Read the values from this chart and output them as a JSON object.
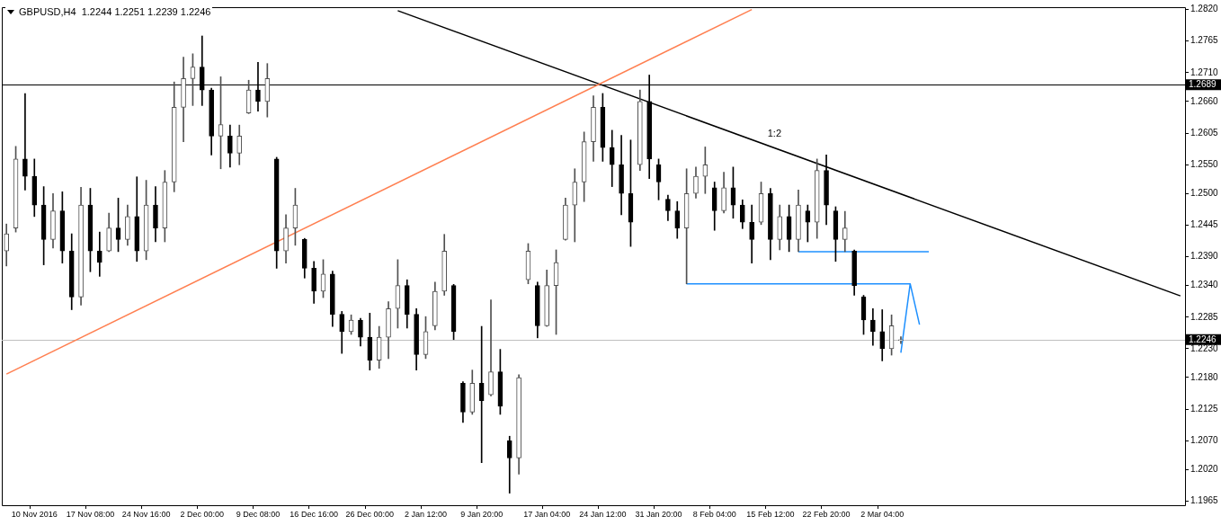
{
  "chart_data": {
    "type": "candlestick",
    "title": "GBPUSD,H4  1.2244 1.2251 1.2239 1.2246",
    "legend": false,
    "marker": "none",
    "categories": [
      null,
      null,
      null,
      "10 Nov 2016",
      null,
      null,
      null,
      null,
      null,
      "17 Nov 08:00",
      null,
      null,
      null,
      null,
      null,
      "24 Nov 16:00",
      null,
      null,
      null,
      null,
      null,
      "2 Dec 00:00",
      null,
      null,
      null,
      null,
      null,
      "9 Dec 08:00",
      null,
      null,
      null,
      null,
      null,
      "16 Dec 16:00",
      null,
      null,
      null,
      null,
      null,
      "26 Dec 00:00",
      null,
      null,
      null,
      null,
      null,
      "2 Jan 12:00",
      null,
      null,
      null,
      null,
      null,
      "9 Jan 20:00",
      null,
      null,
      null,
      null,
      null,
      null,
      "17 Jan 04:00",
      null,
      null,
      null,
      null,
      null,
      "24 Jan 12:00",
      null,
      null,
      null,
      null,
      null,
      "31 Jan 20:00",
      null,
      null,
      null,
      null,
      null,
      "8 Feb 04:00",
      null,
      null,
      null,
      null,
      null,
      "15 Feb 12:00",
      null,
      null,
      null,
      null,
      null,
      "22 Feb 20:00",
      null,
      null,
      null,
      null,
      null,
      "2 Mar 04:00",
      null,
      null,
      null,
      null,
      null,
      null,
      null,
      null,
      null,
      null,
      null,
      null,
      null,
      null,
      null,
      null,
      null,
      null,
      null,
      null,
      null,
      null,
      null,
      null,
      null,
      null,
      null,
      null,
      null,
      null,
      null,
      null
    ],
    "ohlc": [
      [
        1.24,
        1.2447,
        1.2374,
        1.243
      ],
      [
        1.244,
        1.2582,
        1.2433,
        1.256
      ],
      [
        1.256,
        1.2674,
        1.2506,
        1.253
      ],
      [
        1.253,
        1.256,
        1.246,
        1.248
      ],
      [
        1.248,
        1.2512,
        1.2376,
        1.242
      ],
      [
        1.242,
        1.25,
        1.2405,
        1.247
      ],
      [
        1.247,
        1.2503,
        1.2379,
        1.24
      ],
      [
        1.24,
        1.243,
        1.2298,
        1.232
      ],
      [
        1.232,
        1.2511,
        1.2306,
        1.248
      ],
      [
        1.248,
        1.2509,
        1.2364,
        1.24
      ],
      [
        1.24,
        1.2433,
        1.2356,
        1.238
      ],
      [
        1.24,
        1.2466,
        1.2399,
        1.244
      ],
      [
        1.244,
        1.2492,
        1.2399,
        1.242
      ],
      [
        1.242,
        1.248,
        1.241,
        1.246
      ],
      [
        1.246,
        1.2529,
        1.2382,
        1.24
      ],
      [
        1.24,
        1.2523,
        1.2385,
        1.248
      ],
      [
        1.248,
        1.2512,
        1.2416,
        1.244
      ],
      [
        1.244,
        1.254,
        1.2416,
        1.252
      ],
      [
        1.252,
        1.2694,
        1.2503,
        1.265
      ],
      [
        1.265,
        1.2737,
        1.259,
        1.27
      ],
      [
        1.27,
        1.2743,
        1.2653,
        1.272
      ],
      [
        1.272,
        1.2774,
        1.2653,
        1.268
      ],
      [
        1.268,
        1.2683,
        1.2567,
        1.26
      ],
      [
        1.26,
        1.2703,
        1.2543,
        1.262
      ],
      [
        1.26,
        1.2619,
        1.2546,
        1.257
      ],
      [
        1.257,
        1.2619,
        1.255,
        1.26
      ],
      [
        1.264,
        1.2697,
        1.2639,
        1.268
      ],
      [
        1.268,
        1.2728,
        1.2643,
        1.266
      ],
      [
        1.266,
        1.2726,
        1.2633,
        1.27
      ],
      [
        1.256,
        1.2563,
        1.237,
        1.24
      ],
      [
        1.24,
        1.2463,
        1.2379,
        1.244
      ],
      [
        1.244,
        1.2509,
        1.241,
        1.248
      ],
      [
        1.242,
        1.2422,
        1.2353,
        1.237
      ],
      [
        1.237,
        1.2382,
        1.2309,
        1.233
      ],
      [
        1.233,
        1.2385,
        1.2319,
        1.236
      ],
      [
        1.236,
        1.2365,
        1.2269,
        1.229
      ],
      [
        1.229,
        1.2295,
        1.2222,
        1.226
      ],
      [
        1.226,
        1.2289,
        1.2255,
        1.228
      ],
      [
        1.228,
        1.2283,
        1.2235,
        1.225
      ],
      [
        1.225,
        1.2292,
        1.2193,
        1.221
      ],
      [
        1.221,
        1.2269,
        1.2196,
        1.225
      ],
      [
        1.225,
        1.2312,
        1.2213,
        1.23
      ],
      [
        1.23,
        1.2385,
        1.2266,
        1.234
      ],
      [
        1.234,
        1.235,
        1.2266,
        1.229
      ],
      [
        1.229,
        1.23,
        1.2193,
        1.222
      ],
      [
        1.222,
        1.2286,
        1.2213,
        1.226
      ],
      [
        1.227,
        1.2346,
        1.2263,
        1.233
      ],
      [
        1.233,
        1.2429,
        1.2323,
        1.24
      ],
      [
        1.234,
        1.2342,
        1.2246,
        1.226
      ],
      [
        1.217,
        1.2173,
        1.2102,
        1.212
      ],
      [
        1.212,
        1.2193,
        1.2116,
        1.217
      ],
      [
        1.217,
        1.2269,
        1.2032,
        1.214
      ],
      [
        1.215,
        1.2315,
        1.2148,
        1.219
      ],
      [
        1.219,
        1.2229,
        1.2116,
        1.213
      ],
      [
        1.207,
        1.2078,
        1.1979,
        1.204
      ],
      [
        1.204,
        1.2185,
        1.2012,
        1.218
      ],
      [
        1.235,
        1.2413,
        1.2343,
        1.24
      ],
      [
        1.234,
        1.2346,
        1.2249,
        1.227
      ],
      [
        1.227,
        1.2367,
        1.2269,
        1.234
      ],
      [
        1.234,
        1.2402,
        1.2255,
        1.238
      ],
      [
        1.242,
        1.2492,
        1.2419,
        1.248
      ],
      [
        1.248,
        1.2543,
        1.2416,
        1.252
      ],
      [
        1.252,
        1.2607,
        1.2486,
        1.259
      ],
      [
        1.259,
        1.267,
        1.2556,
        1.265
      ],
      [
        1.265,
        1.2674,
        1.2556,
        1.258
      ],
      [
        1.258,
        1.261,
        1.2512,
        1.255
      ],
      [
        1.255,
        1.2601,
        1.2463,
        1.25
      ],
      [
        1.25,
        1.2593,
        1.2408,
        1.245
      ],
      [
        1.255,
        1.268,
        1.254,
        1.266
      ],
      [
        1.266,
        1.2706,
        1.2526,
        1.256
      ],
      [
        1.255,
        1.256,
        1.2489,
        1.252
      ],
      [
        1.249,
        1.2497,
        1.2453,
        1.247
      ],
      [
        1.247,
        1.2486,
        1.2422,
        1.244
      ],
      [
        1.244,
        1.2543,
        1.2343,
        1.25
      ],
      [
        1.25,
        1.2546,
        1.2492,
        1.253
      ],
      [
        1.253,
        1.2581,
        1.25,
        1.255
      ],
      [
        1.251,
        1.252,
        1.2436,
        1.247
      ],
      [
        1.247,
        1.2537,
        1.2466,
        1.251
      ],
      [
        1.251,
        1.2546,
        1.2457,
        1.248
      ],
      [
        1.248,
        1.2489,
        1.2439,
        1.245
      ],
      [
        1.245,
        1.248,
        1.2379,
        1.242
      ],
      [
        1.245,
        1.252,
        1.2446,
        1.25
      ],
      [
        1.25,
        1.2509,
        1.2385,
        1.242
      ],
      [
        1.242,
        1.248,
        1.2402,
        1.246
      ],
      [
        1.246,
        1.248,
        1.2399,
        1.242
      ],
      [
        1.242,
        1.2506,
        1.2399,
        1.248
      ],
      [
        1.247,
        1.248,
        1.2416,
        1.245
      ],
      [
        1.245,
        1.256,
        1.2422,
        1.254
      ],
      [
        1.254,
        1.2567,
        1.2446,
        1.248
      ],
      [
        1.247,
        1.2477,
        1.2382,
        1.242
      ],
      [
        1.242,
        1.2469,
        1.2399,
        1.244
      ],
      [
        1.24,
        1.2402,
        1.2323,
        1.234
      ],
      [
        1.232,
        1.2323,
        1.2255,
        1.228
      ],
      [
        1.228,
        1.23,
        1.2236,
        1.226
      ],
      [
        1.226,
        1.2298,
        1.2209,
        1.223
      ],
      [
        1.223,
        1.2289,
        1.2219,
        1.227
      ],
      [
        1.2244,
        1.2251,
        1.2239,
        1.2246
      ],
      null,
      null,
      null,
      null,
      null,
      null,
      null,
      null,
      null,
      null,
      null,
      null,
      null,
      null,
      null,
      null,
      null,
      null,
      null,
      null,
      null,
      null,
      null,
      null,
      null,
      null,
      null,
      null,
      null,
      null
    ],
    "series": [
      {
        "type": "line",
        "color": "#ff7f50",
        "values": [
          1.2186,
          null,
          null,
          null,
          null,
          null,
          null,
          null,
          null,
          null,
          null,
          null,
          null,
          null,
          null,
          null,
          null,
          null,
          null,
          null,
          null,
          null,
          null,
          null,
          null,
          null,
          null,
          null,
          null,
          null,
          null,
          null,
          null,
          null,
          null,
          null,
          null,
          null,
          null,
          null,
          null,
          null,
          null,
          null,
          null,
          null,
          null,
          null,
          null,
          null,
          null,
          null,
          null,
          null,
          null,
          null,
          null,
          null,
          null,
          null,
          null,
          null,
          null,
          null,
          null,
          null,
          null,
          null,
          null,
          null,
          null,
          null,
          null,
          null,
          null,
          null,
          null,
          null,
          null,
          null,
          1.282,
          null,
          null,
          null,
          null,
          null,
          null,
          null,
          null,
          null,
          null,
          null,
          null,
          null,
          null,
          null,
          null,
          null,
          null,
          null,
          null,
          null,
          null,
          null,
          null,
          null,
          null,
          null,
          null,
          null,
          null,
          null,
          null,
          null,
          null,
          null,
          null,
          null,
          null,
          null,
          null,
          null,
          null,
          null,
          null,
          null,
          null
        ]
      },
      {
        "type": "line",
        "color": "#000000",
        "values": [
          null,
          null,
          null,
          null,
          null,
          null,
          null,
          null,
          null,
          null,
          null,
          null,
          null,
          null,
          null,
          null,
          null,
          null,
          null,
          null,
          null,
          null,
          null,
          null,
          null,
          null,
          null,
          null,
          null,
          null,
          null,
          null,
          null,
          null,
          null,
          null,
          null,
          null,
          null,
          null,
          null,
          null,
          1.2818,
          null,
          null,
          null,
          null,
          null,
          null,
          null,
          null,
          null,
          null,
          null,
          null,
          null,
          null,
          null,
          null,
          null,
          null,
          null,
          null,
          null,
          null,
          null,
          null,
          null,
          null,
          null,
          null,
          null,
          null,
          null,
          null,
          null,
          null,
          null,
          null,
          null,
          null,
          null,
          null,
          null,
          null,
          null,
          null,
          null,
          null,
          null,
          null,
          null,
          null,
          null,
          null,
          null,
          null,
          null,
          null,
          null,
          null,
          null,
          null,
          null,
          null,
          null,
          null,
          null,
          null,
          null,
          null,
          null,
          null,
          null,
          null,
          null,
          null,
          null,
          null,
          null,
          null,
          null,
          null,
          null,
          null,
          null,
          1.2322
        ]
      },
      {
        "type": "line",
        "color": "#1e90ff",
        "values": [
          null,
          null,
          null,
          null,
          null,
          null,
          null,
          null,
          null,
          null,
          null,
          null,
          null,
          null,
          null,
          null,
          null,
          null,
          null,
          null,
          null,
          null,
          null,
          null,
          null,
          null,
          null,
          null,
          null,
          null,
          null,
          null,
          null,
          null,
          null,
          null,
          null,
          null,
          null,
          null,
          null,
          null,
          null,
          null,
          null,
          null,
          null,
          null,
          null,
          null,
          null,
          null,
          null,
          null,
          null,
          null,
          null,
          null,
          null,
          null,
          null,
          null,
          null,
          null,
          null,
          null,
          null,
          null,
          null,
          null,
          null,
          null,
          null,
          1.2343,
          null,
          null,
          null,
          null,
          null,
          null,
          null,
          null,
          null,
          null,
          null,
          null,
          null,
          null,
          null,
          null,
          null,
          null,
          null,
          null,
          null,
          null,
          null,
          1.2343,
          null,
          null,
          null,
          null,
          null,
          null,
          null,
          null,
          null,
          null,
          null,
          null,
          null,
          null,
          null,
          null,
          null,
          null,
          null,
          null,
          null,
          null,
          null,
          null,
          null,
          null,
          null,
          null,
          null
        ]
      },
      {
        "type": "line",
        "color": "#1e90ff",
        "values": [
          null,
          null,
          null,
          null,
          null,
          null,
          null,
          null,
          null,
          null,
          null,
          null,
          null,
          null,
          null,
          null,
          null,
          null,
          null,
          null,
          null,
          null,
          null,
          null,
          null,
          null,
          null,
          null,
          null,
          null,
          null,
          null,
          null,
          null,
          null,
          null,
          null,
          null,
          null,
          null,
          null,
          null,
          null,
          null,
          null,
          null,
          null,
          null,
          null,
          null,
          null,
          null,
          null,
          null,
          null,
          null,
          null,
          null,
          null,
          null,
          null,
          null,
          null,
          null,
          null,
          null,
          null,
          null,
          null,
          null,
          null,
          null,
          null,
          null,
          null,
          null,
          null,
          null,
          null,
          null,
          null,
          null,
          null,
          null,
          null,
          1.2399,
          null,
          null,
          null,
          null,
          null,
          null,
          null,
          null,
          null,
          null,
          null,
          null,
          null,
          1.2399,
          null,
          null,
          null,
          null,
          null,
          null,
          null,
          null,
          null,
          null,
          null,
          null,
          null,
          null,
          null,
          null,
          null,
          null,
          null,
          null,
          null,
          null,
          null,
          null,
          null,
          null,
          null
        ]
      },
      {
        "type": "line",
        "color": "#1e90ff",
        "values": [
          null,
          null,
          null,
          null,
          null,
          null,
          null,
          null,
          null,
          null,
          null,
          null,
          null,
          null,
          null,
          null,
          null,
          null,
          null,
          null,
          null,
          null,
          null,
          null,
          null,
          null,
          null,
          null,
          null,
          null,
          null,
          null,
          null,
          null,
          null,
          null,
          null,
          null,
          null,
          null,
          null,
          null,
          null,
          null,
          null,
          null,
          null,
          null,
          null,
          null,
          null,
          null,
          null,
          null,
          null,
          null,
          null,
          null,
          null,
          null,
          null,
          null,
          null,
          null,
          null,
          null,
          null,
          null,
          null,
          null,
          null,
          null,
          null,
          null,
          null,
          null,
          null,
          null,
          null,
          null,
          null,
          null,
          null,
          null,
          null,
          null,
          null,
          null,
          null,
          null,
          null,
          null,
          null,
          null,
          null,
          null,
          1.2223,
          1.2343,
          1.2272,
          null,
          null,
          null,
          null,
          null,
          null,
          null,
          null,
          null,
          null,
          null,
          null,
          null,
          null,
          null,
          null,
          null,
          null,
          null,
          null,
          null,
          null,
          null,
          null,
          null,
          null,
          null,
          null
        ]
      }
    ],
    "ylim": [
      1.1958,
      1.2824
    ],
    "yticks": [
      {
        "value": 1.282,
        "label": "1.2820"
      },
      1.2765,
      {
        "value": 1.271,
        "label": "1.2710"
      },
      {
        "value": 1.266,
        "label": "1.2660"
      },
      1.2605,
      {
        "value": 1.255,
        "label": "1.2550"
      },
      {
        "value": 1.25,
        "label": "1.2500"
      },
      1.2445,
      {
        "value": 1.239,
        "label": "1.2390"
      },
      {
        "value": 1.234,
        "label": "1.2340"
      },
      1.2285,
      {
        "value": 1.223,
        "label": "1.2230"
      },
      {
        "value": 1.218,
        "label": "1.2180"
      },
      1.2125,
      {
        "value": 1.207,
        "label": "1.2070"
      },
      {
        "value": 1.202,
        "label": "1.2020"
      },
      1.1965
    ],
    "ref_lines": [
      {
        "axis": "y",
        "value": 1.2689,
        "label": "1.2689",
        "color": "#000000"
      },
      {
        "axis": "y",
        "value": 1.2246,
        "label": "1.2246",
        "color": "#c0c0c0"
      }
    ],
    "annotations": [
      "1:2"
    ]
  }
}
